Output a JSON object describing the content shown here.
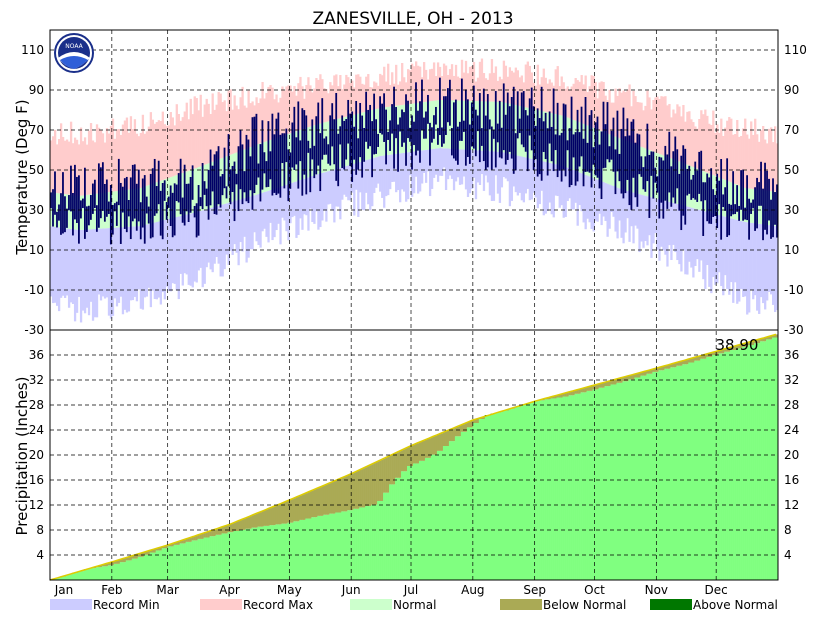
{
  "chart_data": [
    {
      "type": "bar",
      "title": "ZANESVILLE, OH - 2013",
      "ylabel": "Temperature (Deg F)",
      "ylim": [
        -30,
        120
      ],
      "y_ticks": [
        -10,
        10,
        30,
        50,
        70,
        90,
        110
      ],
      "axis_extra_labels": [
        "-30"
      ],
      "months": [
        "Jan",
        "Feb",
        "Mar",
        "Apr",
        "May",
        "Jun",
        "Jul",
        "Aug",
        "Sep",
        "Oct",
        "Nov",
        "Dec"
      ],
      "grid": true,
      "legend_position": "bottom",
      "series": [
        {
          "name": "Record Min",
          "color": "#ccccff"
        },
        {
          "name": "Record Max",
          "color": "#ffcccc"
        },
        {
          "name": "Normal",
          "color": "#ccffcc"
        }
      ],
      "observed_color": "#000066",
      "normal_high_by_month": [
        37,
        41,
        51,
        63,
        73,
        81,
        85,
        84,
        77,
        65,
        53,
        41
      ],
      "normal_low_by_month": [
        20,
        22,
        29,
        38,
        48,
        57,
        61,
        59,
        52,
        40,
        32,
        24
      ],
      "record_high_by_month": [
        68,
        72,
        82,
        88,
        92,
        98,
        100,
        100,
        96,
        88,
        78,
        70
      ],
      "record_low_by_month": [
        -20,
        -16,
        -5,
        14,
        27,
        37,
        45,
        40,
        30,
        20,
        4,
        -16
      ],
      "observed_high_by_month": [
        40,
        44,
        44,
        66,
        74,
        80,
        84,
        82,
        77,
        69,
        52,
        42
      ],
      "observed_low_by_month": [
        22,
        24,
        26,
        40,
        50,
        58,
        64,
        60,
        53,
        42,
        30,
        22
      ]
    },
    {
      "type": "area",
      "ylabel": "Precipitation (Inches)",
      "ylim": [
        0,
        40
      ],
      "y_ticks": [
        4,
        8,
        12,
        16,
        20,
        24,
        28,
        32,
        36
      ],
      "months": [
        "Jan",
        "Feb",
        "Mar",
        "Apr",
        "May",
        "Jun",
        "Jul",
        "Aug",
        "Sep",
        "Oct",
        "Nov",
        "Dec"
      ],
      "grid": true,
      "series": [
        {
          "name": "Below Normal",
          "color": "#aaaa55"
        },
        {
          "name": "Above Normal",
          "color": "#007700"
        }
      ],
      "actual_color": "#80ff80",
      "normal_line_color": "#ddcc00",
      "annotation": "38.90",
      "normal_cumulative": {
        "day": [
          1,
          32,
          60,
          91,
          121,
          152,
          182,
          213,
          244,
          274,
          305,
          335,
          365
        ],
        "value": [
          0,
          2.9,
          5.6,
          8.9,
          12.8,
          17.0,
          21.5,
          25.6,
          28.6,
          31.2,
          33.9,
          36.6,
          39.3
        ]
      },
      "actual_cumulative": {
        "day": [
          1,
          20,
          32,
          45,
          60,
          75,
          90,
          105,
          120,
          135,
          150,
          165,
          172,
          180,
          188,
          195,
          205,
          213,
          220,
          230,
          244,
          260,
          274,
          290,
          305,
          320,
          335,
          350,
          365
        ],
        "value": [
          0,
          1.8,
          2.4,
          3.6,
          5.3,
          6.5,
          7.6,
          8.5,
          9.1,
          10.2,
          11.1,
          12.2,
          15.3,
          18.1,
          19.2,
          20.4,
          23.0,
          24.9,
          26.4,
          27.2,
          28.6,
          29.4,
          30.5,
          31.9,
          33.4,
          34.6,
          36.1,
          37.4,
          38.9
        ]
      }
    }
  ]
}
